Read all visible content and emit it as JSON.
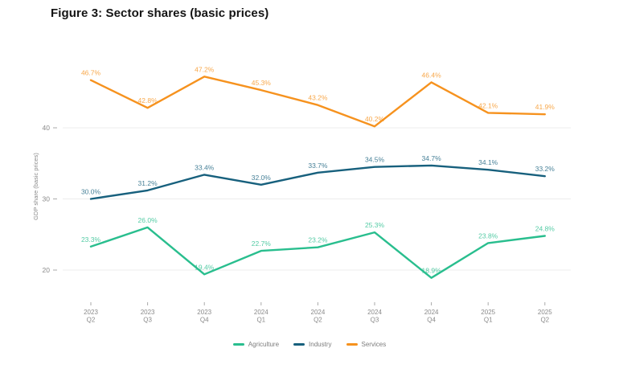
{
  "figure": {
    "title": "Figure 3: Sector shares (basic prices)"
  },
  "chart_data": {
    "type": "line",
    "title": "Figure 3: Sector shares (basic prices)",
    "xlabel": "",
    "ylabel": "GDP share (basic prices)",
    "ylim": [
      15,
      50
    ],
    "yticks": [
      20,
      30,
      40
    ],
    "grid": true,
    "legend_position": "bottom",
    "value_suffix": "%",
    "categories": [
      {
        "year": "2023",
        "quarter": "Q2"
      },
      {
        "year": "2023",
        "quarter": "Q3"
      },
      {
        "year": "2023",
        "quarter": "Q4"
      },
      {
        "year": "2024",
        "quarter": "Q1"
      },
      {
        "year": "2024",
        "quarter": "Q2"
      },
      {
        "year": "2024",
        "quarter": "Q3"
      },
      {
        "year": "2024",
        "quarter": "Q4"
      },
      {
        "year": "2025",
        "quarter": "Q1"
      },
      {
        "year": "2025",
        "quarter": "Q2"
      }
    ],
    "series": [
      {
        "name": "Agriculture",
        "color": "#29BE8E",
        "values": [
          23.3,
          26.0,
          19.4,
          22.7,
          23.2,
          25.3,
          18.9,
          23.8,
          24.8
        ]
      },
      {
        "name": "Industry",
        "color": "#17607D",
        "values": [
          30.0,
          31.2,
          33.4,
          32.0,
          33.7,
          34.5,
          34.7,
          34.1,
          33.2
        ]
      },
      {
        "name": "Services",
        "color": "#F6921E",
        "values": [
          46.7,
          42.8,
          47.2,
          45.3,
          43.2,
          40.2,
          46.4,
          42.1,
          41.9
        ]
      }
    ]
  },
  "style": {
    "grid_color": "#ececec",
    "tick_color": "#aaaaaa",
    "axis_text_color": "#8a8a8a",
    "label_opacity": 0.8
  }
}
